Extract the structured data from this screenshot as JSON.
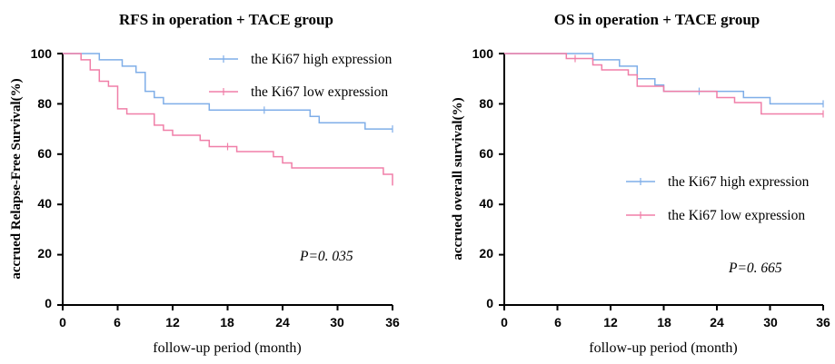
{
  "chart_data": [
    {
      "type": "line",
      "subtype": "kaplan-meier-step",
      "title": "RFS in operation + TACE group",
      "xlabel": "follow-up period (month)",
      "ylabel": "accrued Relapse-Free Survival(%)",
      "xlim": [
        0,
        36
      ],
      "ylim": [
        0,
        100
      ],
      "xticks": [
        "0",
        "6",
        "12",
        "18",
        "24",
        "30",
        "36"
      ],
      "yticks": [
        "0",
        "20",
        "40",
        "60",
        "80",
        "100"
      ],
      "legend_position": "top-right",
      "annotation": "P=0. 035",
      "series": [
        {
          "name": "the Ki67 high expression",
          "color": "#7faee8",
          "x": [
            0,
            4,
            6.5,
            8,
            9,
            10,
            11,
            16,
            27,
            28,
            33,
            36
          ],
          "y": [
            100,
            97.5,
            95,
            92.5,
            85,
            82.5,
            80,
            77.5,
            75,
            72.5,
            70,
            70
          ],
          "censor_x": [
            22,
            36
          ]
        },
        {
          "name": "the Ki67 low expression",
          "color": "#f07fa8",
          "x": [
            0,
            2,
            3,
            4,
            5,
            6,
            7,
            10,
            11,
            12,
            15,
            16,
            19,
            22,
            23,
            24,
            25,
            35,
            36
          ],
          "y": [
            100,
            97.5,
            93.5,
            89,
            87,
            78,
            76,
            71.5,
            69.5,
            67.5,
            65.5,
            63,
            61,
            61,
            59,
            56.5,
            54.5,
            52,
            47.5
          ],
          "censor_x": [
            18
          ]
        }
      ]
    },
    {
      "type": "line",
      "subtype": "kaplan-meier-step",
      "title": "OS in operation + TACE group",
      "xlabel": "follow-up period (month)",
      "ylabel": "accrued overall survival(%)",
      "xlim": [
        0,
        36
      ],
      "ylim": [
        0,
        100
      ],
      "xticks": [
        "0",
        "6",
        "12",
        "18",
        "24",
        "30",
        "36"
      ],
      "yticks": [
        "0",
        "20",
        "40",
        "60",
        "80",
        "100"
      ],
      "legend_position": "middle-right",
      "annotation": "P=0. 665",
      "series": [
        {
          "name": "the Ki67 high expression",
          "color": "#7faee8",
          "x": [
            0,
            10,
            13,
            15,
            17,
            18,
            19,
            27,
            30,
            36
          ],
          "y": [
            100,
            97.5,
            95,
            90,
            87.5,
            85,
            85,
            82.5,
            80,
            80
          ],
          "censor_x": [
            22,
            36
          ]
        },
        {
          "name": "the Ki67 low expression",
          "color": "#f07fa8",
          "x": [
            0,
            7,
            10,
            11,
            13,
            14,
            15,
            18,
            24,
            26,
            29,
            36
          ],
          "y": [
            100,
            98,
            95.5,
            93.5,
            93.5,
            91.5,
            87,
            85,
            82.5,
            80.5,
            76,
            76
          ],
          "censor_x": [
            8,
            36
          ]
        }
      ]
    }
  ]
}
